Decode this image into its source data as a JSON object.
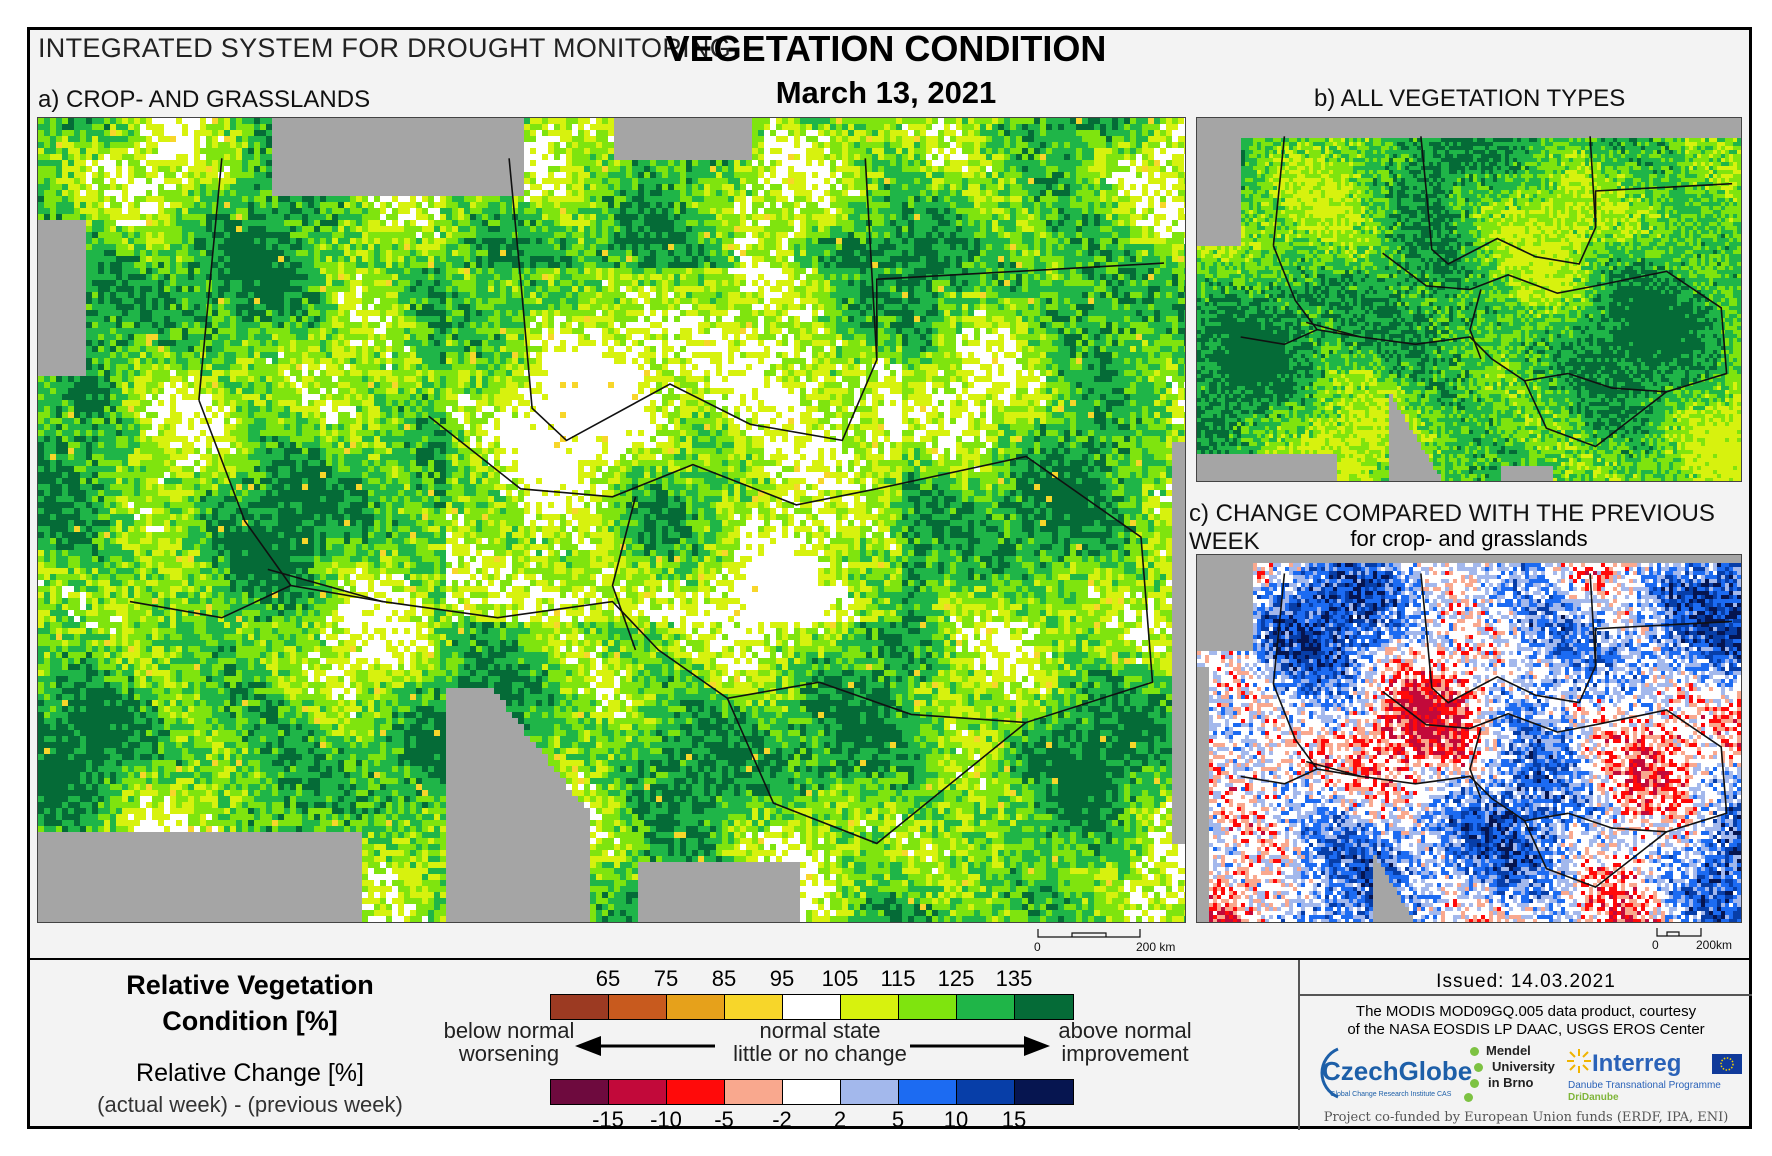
{
  "header": {
    "system_title": "INTEGRATED SYSTEM FOR DROUGHT MONITORING",
    "main_title": "VEGETATION CONDITION",
    "date": "March 13, 2021"
  },
  "panels": {
    "a": {
      "label": "a) CROP- AND GRASSLANDS",
      "scale_zero": "0",
      "scale_km": "200 km"
    },
    "b": {
      "label": "b) ALL VEGETATION TYPES"
    },
    "c": {
      "label": "c) CHANGE COMPARED WITH THE PREVIOUS WEEK",
      "sublabel": "for crop- and grasslands",
      "scale_zero": "0",
      "scale_km": "200km"
    }
  },
  "legend": {
    "rvc_title_line1": "Relative Vegetation",
    "rvc_title_line2": "Condition [%]",
    "rc_title": "Relative Change [%]",
    "rc_sub": "(actual week) - (previous week)",
    "rvc_ticks": [
      "65",
      "75",
      "85",
      "95",
      "105",
      "115",
      "125",
      "135"
    ],
    "rvc_colors": [
      "#9c3a22",
      "#c85a1e",
      "#e6a11b",
      "#f7d62a",
      "#ffffff",
      "#d7f20e",
      "#7fe40e",
      "#1fb548",
      "#056b37"
    ],
    "rc_ticks": [
      "-15",
      "-10",
      "-5",
      "-2",
      "2",
      "5",
      "10",
      "15"
    ],
    "rc_colors": [
      "#6e0a3e",
      "#c2093a",
      "#ff0a0a",
      "#f9a88e",
      "#ffffff",
      "#a3b8ec",
      "#1c6bf2",
      "#073ea8",
      "#061550"
    ],
    "below_line1": "below normal",
    "below_line2": "worsening",
    "normal_line1": "normal state",
    "normal_line2": "little or no change",
    "above_line1": "above normal",
    "above_line2": "improvement"
  },
  "info": {
    "issued": "Issued: 14.03.2021",
    "credit_line1": "The MODIS MOD09GQ.005 data product, courtesy",
    "credit_line2": "of the NASA EOSDIS LP DAAC, USGS EROS Center",
    "cofund": "Project co-funded by European Union funds (ERDF, IPA, ENI)",
    "logo_czechglobe": "CzechGlobe",
    "logo_czechglobe_sub": "Global Change Research Institute CAS",
    "logo_mendel_1": "Mendel",
    "logo_mendel_2": "University",
    "logo_mendel_3": "in Brno",
    "logo_interreg": "Interreg",
    "logo_interreg_sub": "Danube Transnational Programme",
    "logo_interreg_sub2": "DriDanube"
  }
}
